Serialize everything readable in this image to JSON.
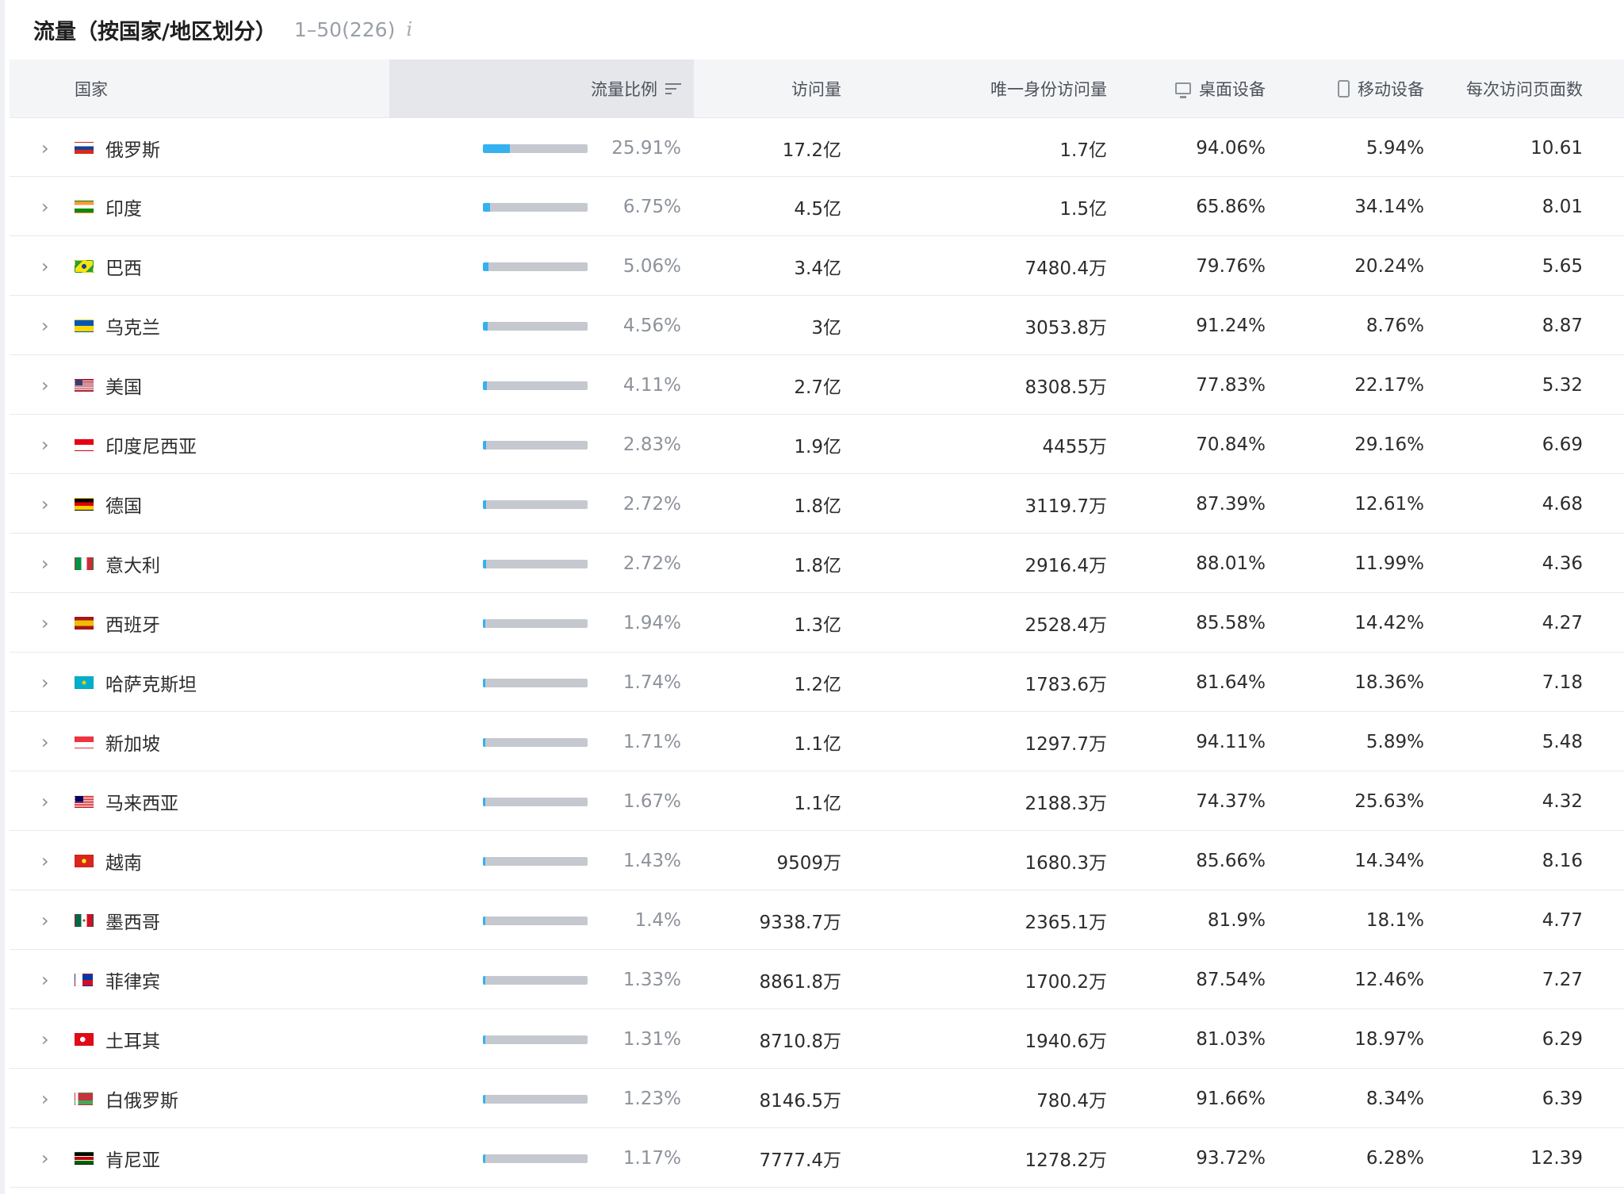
{
  "header": {
    "title": "流量（按国家/地区划分）",
    "range": "1–50(226)",
    "info_icon": "info-icon"
  },
  "columns": {
    "country": "国家",
    "share": "流量比例",
    "visits": "访问量",
    "unique": "唯一身份访问量",
    "desktop": "桌面设备",
    "mobile": "移动设备",
    "pages": "每次访问页面数"
  },
  "icons": {
    "sort": "sort-descending-icon",
    "desktop": "desktop-icon",
    "mobile": "mobile-phone-icon",
    "expand": "chevron-right-icon"
  },
  "colors": {
    "bar_fill": "#33b1f1",
    "bar_track": "#c5c9cf",
    "sorted_header": "#e6e7eb"
  },
  "rows": [
    {
      "name": "俄罗斯",
      "flag": "ru",
      "share": "25.91%",
      "share_value": 25.91,
      "visits": "17.2亿",
      "unique": "1.7亿",
      "desktop": "94.06%",
      "mobile": "5.94%",
      "pages": "10.61"
    },
    {
      "name": "印度",
      "flag": "in",
      "share": "6.75%",
      "share_value": 6.75,
      "visits": "4.5亿",
      "unique": "1.5亿",
      "desktop": "65.86%",
      "mobile": "34.14%",
      "pages": "8.01"
    },
    {
      "name": "巴西",
      "flag": "br",
      "share": "5.06%",
      "share_value": 5.06,
      "visits": "3.4亿",
      "unique": "7480.4万",
      "desktop": "79.76%",
      "mobile": "20.24%",
      "pages": "5.65"
    },
    {
      "name": "乌克兰",
      "flag": "ua",
      "share": "4.56%",
      "share_value": 4.56,
      "visits": "3亿",
      "unique": "3053.8万",
      "desktop": "91.24%",
      "mobile": "8.76%",
      "pages": "8.87"
    },
    {
      "name": "美国",
      "flag": "us",
      "share": "4.11%",
      "share_value": 4.11,
      "visits": "2.7亿",
      "unique": "8308.5万",
      "desktop": "77.83%",
      "mobile": "22.17%",
      "pages": "5.32"
    },
    {
      "name": "印度尼西亚",
      "flag": "id",
      "share": "2.83%",
      "share_value": 2.83,
      "visits": "1.9亿",
      "unique": "4455万",
      "desktop": "70.84%",
      "mobile": "29.16%",
      "pages": "6.69"
    },
    {
      "name": "德国",
      "flag": "de",
      "share": "2.72%",
      "share_value": 2.72,
      "visits": "1.8亿",
      "unique": "3119.7万",
      "desktop": "87.39%",
      "mobile": "12.61%",
      "pages": "4.68"
    },
    {
      "name": "意大利",
      "flag": "it",
      "share": "2.72%",
      "share_value": 2.72,
      "visits": "1.8亿",
      "unique": "2916.4万",
      "desktop": "88.01%",
      "mobile": "11.99%",
      "pages": "4.36"
    },
    {
      "name": "西班牙",
      "flag": "es",
      "share": "1.94%",
      "share_value": 1.94,
      "visits": "1.3亿",
      "unique": "2528.4万",
      "desktop": "85.58%",
      "mobile": "14.42%",
      "pages": "4.27"
    },
    {
      "name": "哈萨克斯坦",
      "flag": "kz",
      "share": "1.74%",
      "share_value": 1.74,
      "visits": "1.2亿",
      "unique": "1783.6万",
      "desktop": "81.64%",
      "mobile": "18.36%",
      "pages": "7.18"
    },
    {
      "name": "新加坡",
      "flag": "sg",
      "share": "1.71%",
      "share_value": 1.71,
      "visits": "1.1亿",
      "unique": "1297.7万",
      "desktop": "94.11%",
      "mobile": "5.89%",
      "pages": "5.48"
    },
    {
      "name": "马来西亚",
      "flag": "my",
      "share": "1.67%",
      "share_value": 1.67,
      "visits": "1.1亿",
      "unique": "2188.3万",
      "desktop": "74.37%",
      "mobile": "25.63%",
      "pages": "4.32"
    },
    {
      "name": "越南",
      "flag": "vn",
      "share": "1.43%",
      "share_value": 1.43,
      "visits": "9509万",
      "unique": "1680.3万",
      "desktop": "85.66%",
      "mobile": "14.34%",
      "pages": "8.16"
    },
    {
      "name": "墨西哥",
      "flag": "mx",
      "share": "1.4%",
      "share_value": 1.4,
      "visits": "9338.7万",
      "unique": "2365.1万",
      "desktop": "81.9%",
      "mobile": "18.1%",
      "pages": "4.77"
    },
    {
      "name": "菲律宾",
      "flag": "ph",
      "share": "1.33%",
      "share_value": 1.33,
      "visits": "8861.8万",
      "unique": "1700.2万",
      "desktop": "87.54%",
      "mobile": "12.46%",
      "pages": "7.27"
    },
    {
      "name": "土耳其",
      "flag": "tr",
      "share": "1.31%",
      "share_value": 1.31,
      "visits": "8710.8万",
      "unique": "1940.6万",
      "desktop": "81.03%",
      "mobile": "18.97%",
      "pages": "6.29"
    },
    {
      "name": "白俄罗斯",
      "flag": "by",
      "share": "1.23%",
      "share_value": 1.23,
      "visits": "8146.5万",
      "unique": "780.4万",
      "desktop": "91.66%",
      "mobile": "8.34%",
      "pages": "6.39"
    },
    {
      "name": "肯尼亚",
      "flag": "ke",
      "share": "1.17%",
      "share_value": 1.17,
      "visits": "7777.4万",
      "unique": "1278.2万",
      "desktop": "93.72%",
      "mobile": "6.28%",
      "pages": "12.39"
    }
  ]
}
